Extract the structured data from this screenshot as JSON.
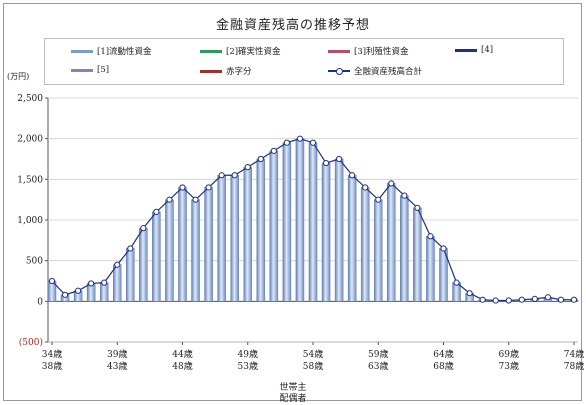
{
  "chart_data": {
    "type": "bar",
    "title": "金融資産残高の推移予想",
    "unit_label": "(万円)",
    "ylim": [
      -500,
      2500
    ],
    "yticks": [
      "2,500",
      "2,000",
      "1,500",
      "1,000",
      "500",
      "0",
      "(500)"
    ],
    "ytick_values": [
      2500,
      2000,
      1500,
      1000,
      500,
      0,
      -500
    ],
    "xtick_labels_row1": [
      "34歳",
      "39歳",
      "44歳",
      "49歳",
      "54歳",
      "59歳",
      "64歳",
      "69歳",
      "74歳"
    ],
    "xtick_labels_row2": [
      "38歳",
      "43歳",
      "48歳",
      "53歳",
      "58歳",
      "63歳",
      "68歳",
      "73歳",
      "78歳"
    ],
    "xaxis_title_row1": "世帯主",
    "xaxis_title_row2": "配偶者",
    "legend": [
      {
        "label": "[1]流動性資金",
        "color": "#7a9ad0",
        "kind": "bar"
      },
      {
        "label": "[2]確実性資金",
        "color": "#2e9a5b",
        "kind": "bar"
      },
      {
        "label": "[3]利殖性資金",
        "color": "#b0506a",
        "kind": "bar"
      },
      {
        "label": "[4]",
        "color": "#1c2f8a",
        "kind": "bar"
      },
      {
        "label": "[5]",
        "color": "#8b7fc0",
        "kind": "bar"
      },
      {
        "label": "赤字分",
        "color": "#a0302c",
        "kind": "bar"
      },
      {
        "label": "全融資産残高合計",
        "color": "#1c2f8a",
        "kind": "line"
      }
    ],
    "x": [
      34,
      35,
      36,
      37,
      38,
      39,
      40,
      41,
      42,
      43,
      44,
      45,
      46,
      47,
      48,
      49,
      50,
      51,
      52,
      53,
      54,
      55,
      56,
      57,
      58,
      59,
      60,
      61,
      62,
      63,
      64,
      65,
      66,
      67,
      68,
      69,
      70,
      71,
      72,
      73,
      74
    ],
    "series": [
      {
        "name": "[1]流動性資金",
        "values": [
          250,
          80,
          130,
          220,
          230,
          450,
          650,
          900,
          1100,
          1250,
          1400,
          1250,
          1400,
          1550,
          1550,
          1650,
          1750,
          1850,
          1950,
          2000,
          1950,
          1700,
          1750,
          1550,
          1400,
          1250,
          1450,
          1300,
          1150,
          800,
          650,
          230,
          100,
          20,
          10,
          10,
          20,
          30,
          50,
          20,
          20
        ]
      },
      {
        "name": "全融資産残高合計",
        "values": [
          250,
          80,
          130,
          220,
          230,
          450,
          650,
          900,
          1100,
          1250,
          1400,
          1250,
          1400,
          1550,
          1550,
          1650,
          1750,
          1850,
          1950,
          2000,
          1950,
          1700,
          1750,
          1550,
          1400,
          1250,
          1450,
          1300,
          1150,
          800,
          650,
          230,
          100,
          20,
          10,
          10,
          20,
          30,
          50,
          20,
          20
        ]
      }
    ]
  }
}
